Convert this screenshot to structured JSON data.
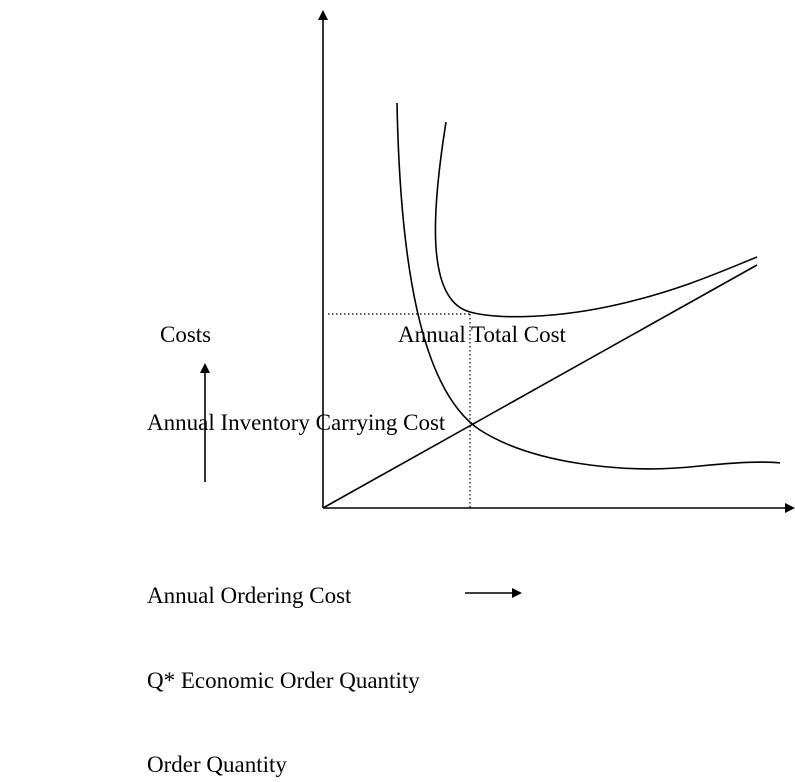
{
  "axis_label": "Costs",
  "curves": {
    "total_cost": "Annual Total Cost",
    "carrying_cost": "Annual Inventory Carrying Cost"
  },
  "legend": {
    "ordering_cost": "Annual Ordering Cost",
    "eoq": "Q* Economic Order Quantity",
    "x_axis": "Order Quantity"
  }
}
